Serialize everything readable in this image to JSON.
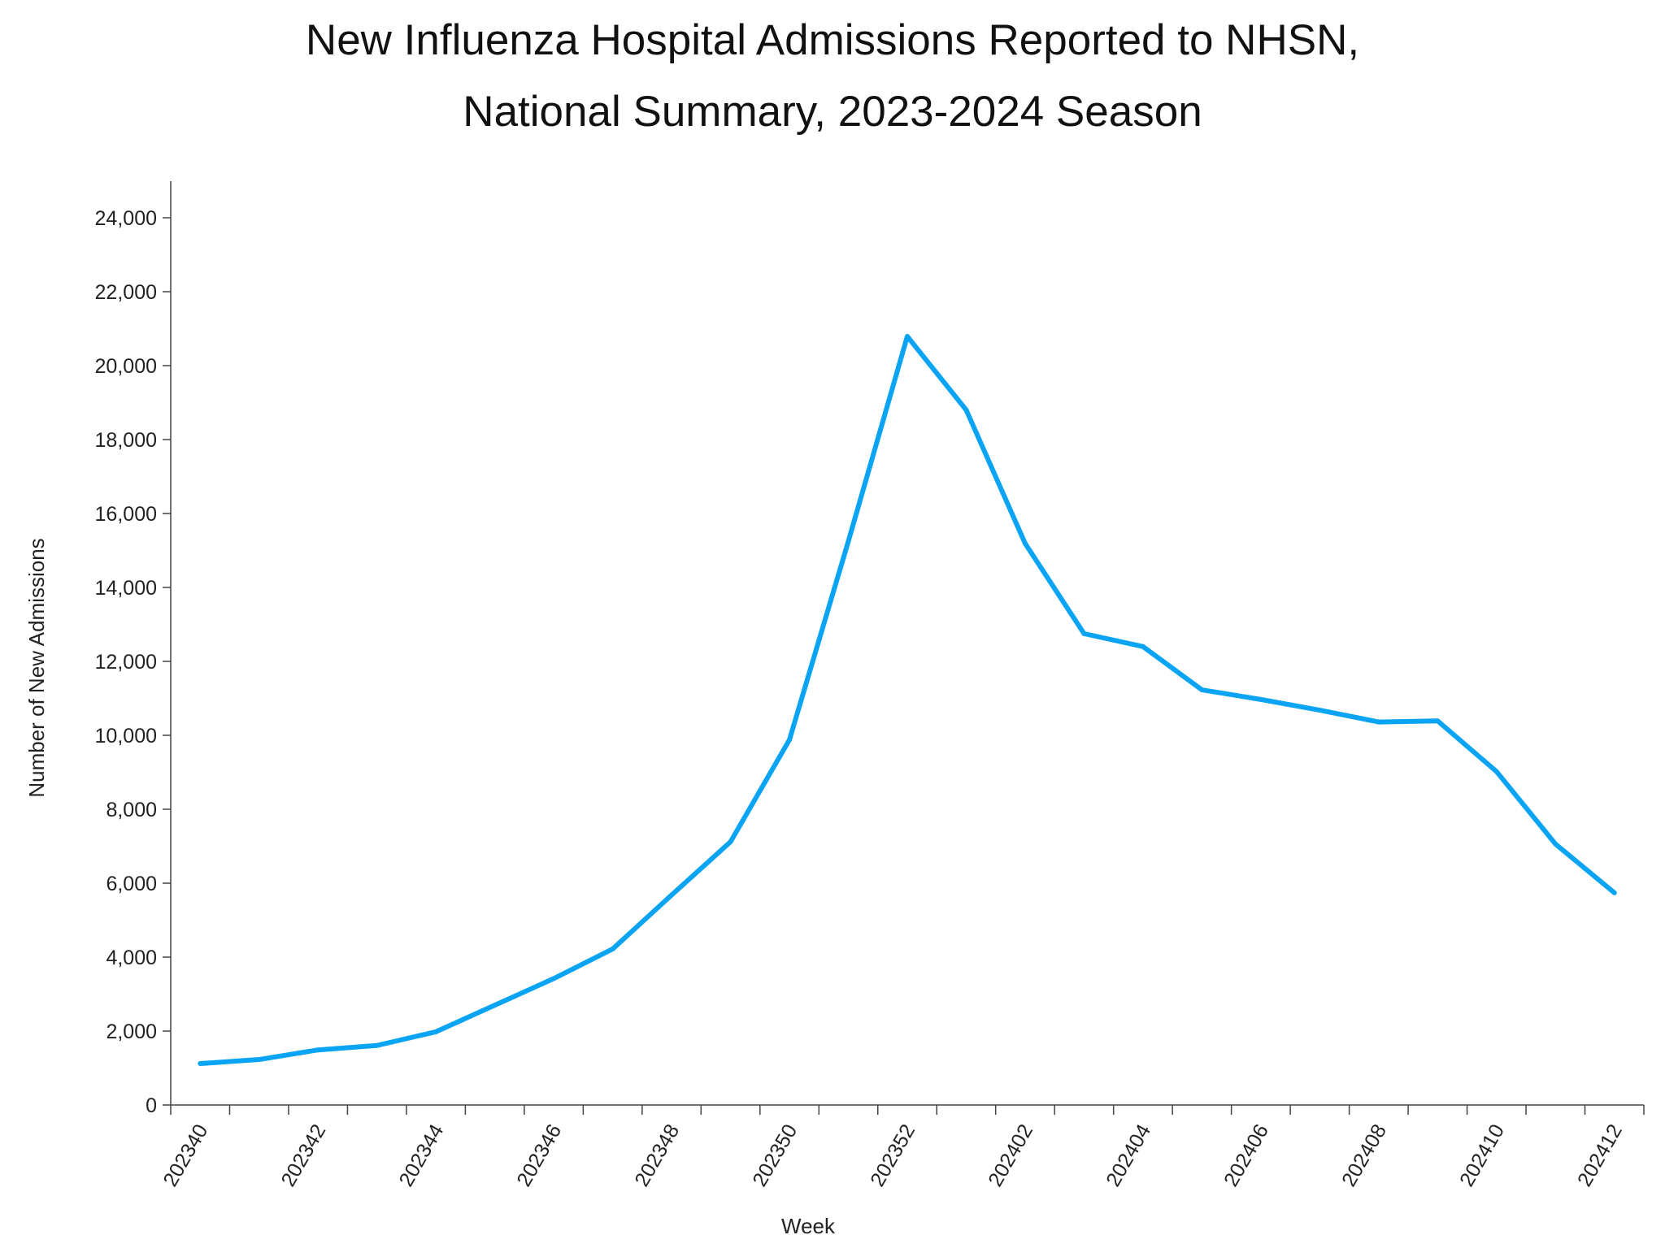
{
  "chart_data": {
    "type": "line",
    "title": "New Influenza Hospital Admissions Reported to NHSN,",
    "subtitle": "National Summary, 2023-2024 Season",
    "xlabel": "Week",
    "ylabel": "Number of New Admissions",
    "ylim": [
      0,
      25000
    ],
    "yticks": [
      "0",
      "2,000",
      "4,000",
      "6,000",
      "8,000",
      "10,000",
      "12,000",
      "14,000",
      "16,000",
      "18,000",
      "20,000",
      "22,000",
      "24,000"
    ],
    "ytick_values": [
      0,
      2000,
      4000,
      6000,
      8000,
      10000,
      12000,
      14000,
      16000,
      18000,
      20000,
      22000,
      24000
    ],
    "xtick_labels": [
      "202340",
      "202342",
      "202344",
      "202346",
      "202348",
      "202350",
      "202352",
      "202402",
      "202404",
      "202406",
      "202408",
      "202410",
      "202412"
    ],
    "grid": false,
    "line_color": "#0AA4F5",
    "x": [
      "202340",
      "202341",
      "202342",
      "202343",
      "202344",
      "202345",
      "202346",
      "202347",
      "202348",
      "202349",
      "202350",
      "202351",
      "202352",
      "202401",
      "202402",
      "202403",
      "202404",
      "202405",
      "202406",
      "202407",
      "202408",
      "202409",
      "202410",
      "202411",
      "202412"
    ],
    "series": [
      {
        "values": [
          1120,
          1230,
          1490,
          1610,
          1980,
          2700,
          3420,
          4220,
          5680,
          7120,
          9880,
          15250,
          20790,
          18800,
          15190,
          12750,
          12400,
          11230,
          10970,
          10680,
          10360,
          10390,
          9020,
          7060,
          5740
        ]
      }
    ]
  }
}
